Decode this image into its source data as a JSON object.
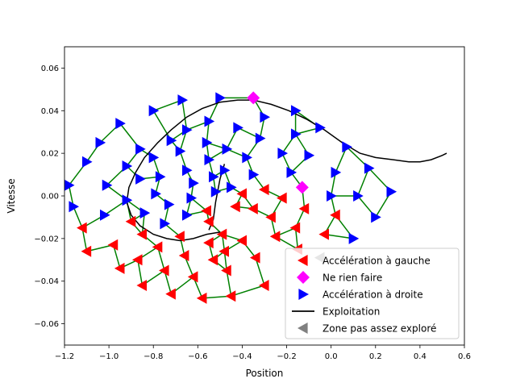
{
  "chart_data": {
    "type": "scatter",
    "title": "",
    "xlabel": "Position",
    "ylabel": "Vitesse",
    "xlim": [
      -1.2,
      0.6
    ],
    "ylim": [
      -0.07,
      0.07
    ],
    "xticks": [
      -1.2,
      -1.0,
      -0.8,
      -0.6,
      -0.4,
      -0.2,
      0.0,
      0.2,
      0.4,
      0.6
    ],
    "yticks": [
      -0.06,
      -0.04,
      -0.02,
      0.0,
      0.02,
      0.04,
      0.06
    ],
    "xtick_labels": [
      "−1.2",
      "−1.0",
      "−0.8",
      "−0.6",
      "−0.4",
      "−0.2",
      "0.0",
      "0.2",
      "0.4",
      "0.6"
    ],
    "ytick_labels": [
      "−0.06",
      "−0.04",
      "−0.02",
      "0.00",
      "0.02",
      "0.04",
      "0.06"
    ],
    "grid": false,
    "legend_position": "lower-right",
    "colors": {
      "left": "#ff0000",
      "nothing": "#ff00ff",
      "right": "#0000ff",
      "exploit": "#000000",
      "unexplored": "#808080",
      "edges": "#008000"
    },
    "legend": [
      {
        "key": "left",
        "label": "Accélération à gauche",
        "marker": "triangle-left"
      },
      {
        "key": "nothing",
        "label": "Ne rien faire",
        "marker": "diamond"
      },
      {
        "key": "right",
        "label": "Accélération à droite",
        "marker": "triangle-right"
      },
      {
        "key": "exploit",
        "label": "Exploitation",
        "marker": "line"
      },
      {
        "key": "unexplored",
        "label": "Zone pas assez exploré",
        "marker": "triangle-left"
      }
    ],
    "series": {
      "left": [
        [
          -1.12,
          -0.015
        ],
        [
          -1.1,
          -0.026
        ],
        [
          -0.98,
          -0.023
        ],
        [
          -0.95,
          -0.034
        ],
        [
          -0.9,
          -0.012
        ],
        [
          -0.85,
          -0.018
        ],
        [
          -0.87,
          -0.03
        ],
        [
          -0.85,
          -0.042
        ],
        [
          -0.78,
          -0.024
        ],
        [
          -0.75,
          -0.035
        ],
        [
          -0.72,
          -0.046
        ],
        [
          -0.68,
          -0.019
        ],
        [
          -0.66,
          -0.028
        ],
        [
          -0.62,
          -0.038
        ],
        [
          -0.58,
          -0.048
        ],
        [
          -0.56,
          -0.007
        ],
        [
          -0.55,
          -0.012
        ],
        [
          -0.55,
          -0.022
        ],
        [
          -0.53,
          -0.03
        ],
        [
          -0.49,
          -0.018
        ],
        [
          -0.48,
          -0.026
        ],
        [
          -0.47,
          -0.035
        ],
        [
          -0.45,
          -0.047
        ],
        [
          -0.43,
          -0.005
        ],
        [
          -0.4,
          0.001
        ],
        [
          -0.4,
          -0.021
        ],
        [
          -0.35,
          -0.006
        ],
        [
          -0.34,
          -0.029
        ],
        [
          -0.3,
          -0.042
        ],
        [
          -0.3,
          0.003
        ],
        [
          -0.27,
          -0.01
        ],
        [
          -0.25,
          -0.019
        ],
        [
          -0.22,
          -0.001
        ],
        [
          -0.16,
          -0.015
        ],
        [
          -0.15,
          -0.025
        ],
        [
          -0.12,
          -0.006
        ],
        [
          -0.03,
          -0.018
        ],
        [
          0.02,
          -0.009
        ]
      ],
      "nothing": [
        [
          -0.35,
          0.046
        ],
        [
          -0.13,
          0.004
        ]
      ],
      "right": [
        [
          -1.18,
          0.005
        ],
        [
          -1.16,
          -0.005
        ],
        [
          -1.1,
          0.016
        ],
        [
          -1.04,
          0.025
        ],
        [
          -1.02,
          -0.009
        ],
        [
          -1.01,
          0.005
        ],
        [
          -0.95,
          0.034
        ],
        [
          -0.92,
          0.014
        ],
        [
          -0.92,
          -0.002
        ],
        [
          -0.86,
          0.022
        ],
        [
          -0.86,
          0.008
        ],
        [
          -0.84,
          -0.008
        ],
        [
          -0.8,
          0.04
        ],
        [
          -0.8,
          0.018
        ],
        [
          -0.79,
          0.001
        ],
        [
          -0.77,
          0.009
        ],
        [
          -0.75,
          -0.013
        ],
        [
          -0.73,
          -0.004
        ],
        [
          -0.72,
          0.026
        ],
        [
          -0.68,
          0.021
        ],
        [
          -0.67,
          0.045
        ],
        [
          -0.65,
          0.031
        ],
        [
          -0.65,
          0.012
        ],
        [
          -0.65,
          -0.009
        ],
        [
          -0.63,
          -0.001
        ],
        [
          -0.62,
          0.006
        ],
        [
          -0.56,
          0.025
        ],
        [
          -0.55,
          0.035
        ],
        [
          -0.55,
          0.017
        ],
        [
          -0.53,
          0.009
        ],
        [
          -0.52,
          0.002
        ],
        [
          -0.5,
          0.046
        ],
        [
          -0.48,
          0.012
        ],
        [
          -0.47,
          0.022
        ],
        [
          -0.45,
          0.004
        ],
        [
          -0.42,
          0.032
        ],
        [
          -0.38,
          0.018
        ],
        [
          -0.35,
          0.01
        ],
        [
          -0.32,
          0.027
        ],
        [
          -0.3,
          0.037
        ],
        [
          -0.22,
          0.02
        ],
        [
          -0.18,
          0.011
        ],
        [
          -0.16,
          0.04
        ],
        [
          -0.16,
          0.029
        ],
        [
          -0.1,
          0.019
        ],
        [
          -0.05,
          0.032
        ],
        [
          0.0,
          0.0
        ],
        [
          0.02,
          0.011
        ],
        [
          0.07,
          0.023
        ],
        [
          0.1,
          -0.02
        ],
        [
          0.12,
          0.0
        ],
        [
          0.17,
          0.013
        ],
        [
          0.2,
          -0.01
        ],
        [
          0.27,
          0.002
        ]
      ],
      "unexplored": [
        [
          -0.05,
          -0.029
        ]
      ],
      "exploitation": [
        [
          -0.5,
          -0.017
        ],
        [
          -0.56,
          -0.018
        ],
        [
          -0.62,
          -0.02
        ],
        [
          -0.68,
          -0.021
        ],
        [
          -0.74,
          -0.02
        ],
        [
          -0.8,
          -0.018
        ],
        [
          -0.86,
          -0.014
        ],
        [
          -0.9,
          -0.009
        ],
        [
          -0.92,
          -0.003
        ],
        [
          -0.91,
          0.004
        ],
        [
          -0.88,
          0.011
        ],
        [
          -0.84,
          0.018
        ],
        [
          -0.78,
          0.025
        ],
        [
          -0.72,
          0.031
        ],
        [
          -0.65,
          0.037
        ],
        [
          -0.58,
          0.041
        ],
        [
          -0.5,
          0.044
        ],
        [
          -0.42,
          0.045
        ],
        [
          -0.35,
          0.045
        ],
        [
          -0.27,
          0.043
        ],
        [
          -0.19,
          0.04
        ],
        [
          -0.11,
          0.036
        ],
        [
          -0.03,
          0.031
        ],
        [
          0.05,
          0.025
        ],
        [
          0.13,
          0.02
        ],
        [
          0.2,
          0.018
        ],
        [
          0.28,
          0.017
        ],
        [
          0.35,
          0.016
        ],
        [
          0.4,
          0.016
        ],
        [
          0.45,
          0.017
        ],
        [
          0.5,
          0.019
        ],
        [
          0.52,
          0.02
        ]
      ],
      "exploitation_inner": [
        [
          -0.48,
          0.015
        ],
        [
          -0.5,
          0.008
        ],
        [
          -0.52,
          -0.003
        ],
        [
          -0.53,
          -0.011
        ],
        [
          -0.55,
          -0.016
        ]
      ]
    }
  }
}
